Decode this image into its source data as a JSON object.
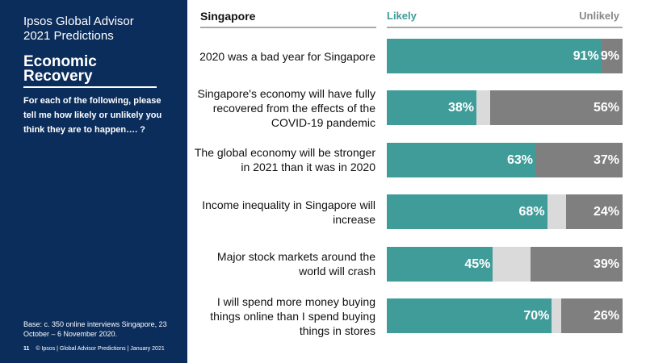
{
  "sidebar": {
    "brand_line1": "Ipsos Global Advisor",
    "brand_line2": "2021 Predictions",
    "section_title": "Economic Recovery",
    "question": "For each of the following, please tell me how likely or unlikely you think they are to happen…. ?",
    "base_note": "Base: c. 350 online interviews Singapore, 23 October – 6 November 2020.",
    "page_number": "11",
    "footer_text": "© Ipsos | Global Advisor Predictions | January 2021",
    "background_color": "#0b2d5b"
  },
  "country": "Singapore",
  "legend": {
    "likely": "Likely",
    "unlikely": "Unlikely"
  },
  "colors": {
    "likely": "#3f9c99",
    "unlikely": "#7f7f7f",
    "neutral": "#dadada"
  },
  "chart_data": {
    "type": "bar",
    "orientation": "horizontal",
    "stacked": true,
    "unit": "%",
    "categories": [
      "2020 was a bad year for Singapore",
      "Singapore's economy will have fully recovered from the effects of the COVID-19 pandemic",
      "The global economy will be stronger in 2021 than it was in 2020",
      "Income inequality in Singapore will increase",
      "Major stock markets around the world will crash",
      "I will spend more money buying things online than I spend buying things in stores"
    ],
    "series": [
      {
        "name": "Likely",
        "values": [
          91,
          38,
          63,
          68,
          45,
          70
        ]
      },
      {
        "name": "Unlikely",
        "values": [
          9,
          56,
          37,
          24,
          39,
          26
        ]
      }
    ],
    "xlim": [
      0,
      100
    ],
    "title": "Singapore"
  }
}
